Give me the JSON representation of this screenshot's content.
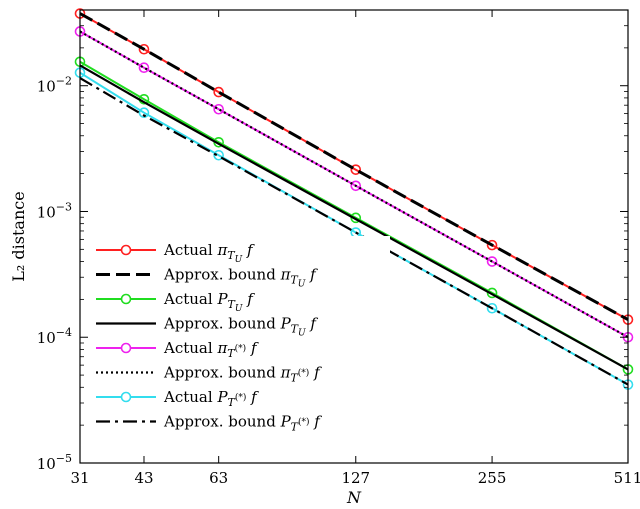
{
  "chart_data": {
    "type": "line",
    "x_scale": "log",
    "y_scale": "log",
    "xlabel": "N",
    "ylabel": "L₂ distance",
    "xlim": [
      31,
      511
    ],
    "ylim": [
      1e-05,
      0.04
    ],
    "x_ticks": [
      31,
      43,
      63,
      127,
      255,
      511
    ],
    "x_tick_labels": [
      "31",
      "43",
      "63",
      "127",
      "255",
      "511"
    ],
    "y_ticks": [
      1e-05,
      0.0001,
      0.001,
      0.01
    ],
    "y_tick_labels": [
      {
        "base": "10",
        "exp": "−5"
      },
      {
        "base": "10",
        "exp": "−4"
      },
      {
        "base": "10",
        "exp": "−3"
      },
      {
        "base": "10",
        "exp": "−2"
      }
    ],
    "grid": false,
    "legend_position": "bottom-left",
    "x": [
      31,
      43,
      63,
      127,
      255,
      511
    ],
    "series": [
      {
        "name": "Actual π_{T_U} f",
        "legend": {
          "pre": "Actual ",
          "sym": "π",
          "sub": "T",
          "subsub": "U",
          "post": " f"
        },
        "style": "solid-marker",
        "color": "#ff2020",
        "marker": "circle",
        "values": [
          0.0375,
          0.0195,
          0.0089,
          0.00215,
          0.00054,
          0.000138
        ]
      },
      {
        "name": "Approx. bound π_{T_U} f",
        "legend": {
          "pre": "Approx. bound ",
          "sym": "π",
          "sub": "T",
          "subsub": "U",
          "post": " f"
        },
        "style": "dashed",
        "color": "#000000",
        "marker": "none",
        "values": [
          0.0375,
          0.0195,
          0.0089,
          0.00215,
          0.00054,
          0.000138
        ]
      },
      {
        "name": "Actual P_{T_U} f",
        "legend": {
          "pre": "Actual ",
          "sym": "P",
          "sub": "T",
          "subsub": "U",
          "post": " f"
        },
        "style": "solid-marker",
        "color": "#20dd20",
        "marker": "circle",
        "values": [
          0.0155,
          0.0078,
          0.00355,
          0.00089,
          0.000225,
          5.55e-05
        ]
      },
      {
        "name": "Approx. bound P_{T_U} f",
        "legend": {
          "pre": "Approx. bound ",
          "sym": "P",
          "sub": "T",
          "subsub": "U",
          "post": " f"
        },
        "style": "solid",
        "color": "#000000",
        "marker": "none",
        "values": [
          0.0145,
          0.0074,
          0.00345,
          0.00087,
          0.00022,
          5.55e-05
        ]
      },
      {
        "name": "Actual π_{T^(*)} f",
        "legend": {
          "pre": "Actual ",
          "sym": "π",
          "sub": "T",
          "subsub": "(*)",
          "post": " f"
        },
        "style": "solid-marker",
        "color": "#ee22ee",
        "marker": "circle",
        "values": [
          0.027,
          0.0139,
          0.0065,
          0.0016,
          0.0004,
          0.0001
        ]
      },
      {
        "name": "Approx. bound π_{T^(*)} f",
        "legend": {
          "pre": "Approx. bound ",
          "sym": "π",
          "sub": "T",
          "subsub": "(*)",
          "post": " f"
        },
        "style": "dotted",
        "color": "#000000",
        "marker": "none",
        "values": [
          0.027,
          0.0139,
          0.0065,
          0.0016,
          0.0004,
          0.0001
        ]
      },
      {
        "name": "Actual P_{T^(*)} f",
        "legend": {
          "pre": "Actual ",
          "sym": "P",
          "sub": "T",
          "subsub": "(*)",
          "post": " f"
        },
        "style": "solid-marker",
        "color": "#33ddee",
        "marker": "circle",
        "values": [
          0.0127,
          0.0061,
          0.0028,
          0.00068,
          0.00017,
          4.2e-05
        ]
      },
      {
        "name": "Approx. bound P_{T^(*)} f",
        "legend": {
          "pre": "Approx. bound ",
          "sym": "P",
          "sub": "T",
          "subsub": "(*)",
          "post": " f"
        },
        "style": "dashdot",
        "color": "#000000",
        "marker": "none",
        "values": [
          0.0115,
          0.0058,
          0.00275,
          0.00068,
          0.00017,
          4.2e-05
        ]
      }
    ]
  }
}
